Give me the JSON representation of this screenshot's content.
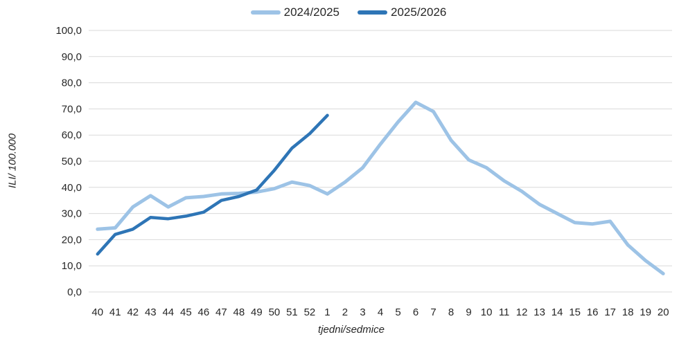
{
  "chart": {
    "y_axis_title": "ILI/ 100.000",
    "x_axis_title": "tjedni/sedmice",
    "gridline_color": "#d9d9d9",
    "text_color": "#262626",
    "background_color": "#ffffff"
  },
  "chart_data": {
    "type": "line",
    "title": "",
    "xlabel": "tjedni/sedmice",
    "ylabel": "ILI/ 100.000",
    "ylim": [
      0,
      100
    ],
    "grid": true,
    "legend_position": "top-center",
    "y_tick_labels": [
      "0,0",
      "10,0",
      "20,0",
      "30,0",
      "40,0",
      "50,0",
      "60,0",
      "70,0",
      "80,0",
      "90,0",
      "100,0"
    ],
    "categories": [
      "40",
      "41",
      "42",
      "43",
      "44",
      "45",
      "46",
      "47",
      "48",
      "49",
      "50",
      "51",
      "52",
      "1",
      "2",
      "3",
      "4",
      "5",
      "6",
      "7",
      "8",
      "9",
      "10",
      "11",
      "12",
      "13",
      "14",
      "15",
      "16",
      "17",
      "18",
      "19",
      "20"
    ],
    "series": [
      {
        "name": "2024/2025",
        "color": "#9dc3e6",
        "stroke_width": 5,
        "values": [
          24,
          24.5,
          32.5,
          36.8,
          32.5,
          36,
          36.5,
          37.5,
          37.7,
          38.2,
          39.5,
          42,
          40.7,
          37.5,
          42,
          47.5,
          56.5,
          65,
          72.5,
          69,
          58,
          50.5,
          47.5,
          42.5,
          38.5,
          33.5,
          30,
          26.5,
          26,
          27,
          18,
          12,
          7
        ]
      },
      {
        "name": "2025/2026",
        "color": "#2e75b6",
        "stroke_width": 4.5,
        "values": [
          14.5,
          22,
          24,
          28.5,
          28,
          29,
          30.5,
          35,
          36.5,
          39,
          46.5,
          55,
          60.5,
          67.5
        ]
      }
    ]
  }
}
